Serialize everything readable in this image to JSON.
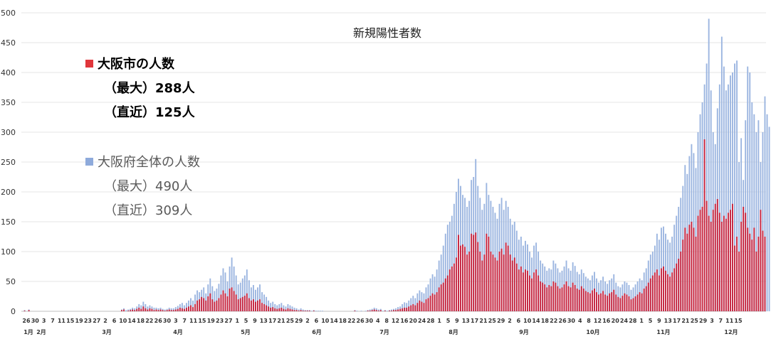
{
  "chart_data": {
    "type": "bar",
    "title": "新規陽性者数",
    "xlabel": "",
    "ylabel": "",
    "ylim": [
      0,
      500
    ],
    "yticks": [
      0,
      50,
      100,
      150,
      200,
      250,
      300,
      350,
      400,
      450,
      500
    ],
    "grid": true,
    "legend_position": "top-left",
    "colors": {
      "city": "#c8223c",
      "pref": "#9bb5e0",
      "grid": "#e6e6e6",
      "axis_text": "#333333"
    },
    "x_day_labels": [
      "26",
      "30",
      "3",
      "7",
      "11",
      "15",
      "19",
      "23",
      "27",
      "2",
      "6",
      "10",
      "14",
      "18",
      "22",
      "26",
      "30",
      "3",
      "7",
      "11",
      "15",
      "19",
      "23",
      "27",
      "1",
      "5",
      "9",
      "13",
      "17",
      "21",
      "25",
      "29",
      "2",
      "6",
      "10",
      "14",
      "18",
      "22",
      "26",
      "30",
      "4",
      "8",
      "12",
      "16",
      "20",
      "24",
      "28",
      "1",
      "5",
      "9",
      "13",
      "17",
      "21",
      "25",
      "29",
      "2",
      "6",
      "10",
      "14",
      "18",
      "22",
      "26",
      "30",
      "4",
      "8",
      "12",
      "16",
      "20",
      "24",
      "28",
      "1",
      "5",
      "9",
      "13",
      "17",
      "21",
      "25",
      "29",
      "3",
      "7",
      "11",
      "15"
    ],
    "x_month_labels": [
      "1月",
      "2月",
      "3月",
      "4月",
      "5月",
      "6月",
      "7月",
      "8月",
      "9月",
      "10月",
      "11月",
      "12月"
    ],
    "series": [
      {
        "name": "大阪市の人数",
        "values": [
          0,
          1,
          0,
          2,
          0,
          0,
          0,
          0,
          0,
          0,
          0,
          0,
          0,
          0,
          0,
          0,
          0,
          0,
          0,
          0,
          0,
          0,
          0,
          0,
          0,
          0,
          0,
          0,
          0,
          0,
          0,
          0,
          0,
          0,
          0,
          0,
          0,
          0,
          0,
          0,
          0,
          0,
          0,
          0,
          0,
          0,
          2,
          3,
          0,
          1,
          2,
          3,
          2,
          4,
          6,
          4,
          8,
          5,
          3,
          5,
          4,
          2,
          3,
          2,
          3,
          2,
          1,
          2,
          3,
          2,
          2,
          3,
          4,
          6,
          5,
          4,
          6,
          8,
          10,
          7,
          12,
          18,
          20,
          24,
          22,
          18,
          25,
          30,
          20,
          16,
          18,
          22,
          28,
          35,
          30,
          25,
          38,
          40,
          34,
          28,
          20,
          22,
          24,
          26,
          30,
          22,
          18,
          20,
          16,
          18,
          20,
          14,
          12,
          10,
          8,
          6,
          7,
          5,
          4,
          5,
          6,
          4,
          3,
          5,
          4,
          3,
          2,
          2,
          1,
          2,
          1,
          1,
          1,
          1,
          0,
          1,
          0,
          0,
          0,
          0,
          0,
          0,
          0,
          0,
          0,
          0,
          0,
          0,
          0,
          0,
          0,
          0,
          0,
          0,
          1,
          0,
          0,
          0,
          0,
          0,
          1,
          1,
          2,
          3,
          2,
          1,
          2,
          0,
          1,
          0,
          1,
          1,
          2,
          2,
          3,
          4,
          5,
          6,
          6,
          8,
          10,
          12,
          10,
          14,
          18,
          16,
          14,
          20,
          22,
          26,
          30,
          28,
          32,
          40,
          45,
          48,
          55,
          60,
          70,
          75,
          80,
          90,
          128,
          110,
          112,
          108,
          95,
          100,
          130,
          128,
          132,
          116,
          100,
          85,
          95,
          130,
          125,
          100,
          95,
          90,
          85,
          100,
          105,
          95,
          115,
          110,
          95,
          85,
          90,
          80,
          70,
          75,
          65,
          70,
          68,
          60,
          55,
          65,
          70,
          60,
          50,
          48,
          45,
          40,
          44,
          42,
          50,
          48,
          42,
          38,
          40,
          45,
          50,
          42,
          40,
          48,
          44,
          38,
          36,
          42,
          38,
          34,
          32,
          30,
          35,
          38,
          32,
          28,
          30,
          34,
          28,
          26,
          30,
          32,
          36,
          28,
          24,
          22,
          26,
          30,
          28,
          25,
          20,
          22,
          25,
          28,
          32,
          30,
          38,
          42,
          48,
          55,
          60,
          65,
          70,
          60,
          72,
          75,
          68,
          62,
          58,
          65,
          72,
          80,
          88,
          100,
          120,
          140,
          130,
          145,
          150,
          140,
          125,
          160,
          170,
          175,
          288,
          185,
          160,
          150,
          170,
          180,
          188,
          165,
          150,
          160,
          155,
          165,
          170,
          180,
          110,
          125,
          100,
          150,
          175,
          165,
          140,
          130,
          120,
          140,
          100,
          125,
          170,
          135,
          125
        ]
      },
      {
        "name": "大阪府全体の人数",
        "values": [
          0,
          2,
          0,
          3,
          0,
          0,
          0,
          0,
          0,
          0,
          0,
          0,
          0,
          0,
          0,
          0,
          0,
          0,
          0,
          0,
          0,
          0,
          0,
          0,
          0,
          0,
          0,
          0,
          0,
          0,
          0,
          0,
          0,
          0,
          0,
          0,
          0,
          0,
          0,
          0,
          0,
          0,
          0,
          0,
          0,
          0,
          3,
          5,
          2,
          3,
          4,
          6,
          5,
          8,
          12,
          10,
          16,
          12,
          8,
          10,
          8,
          6,
          6,
          5,
          6,
          4,
          3,
          4,
          6,
          5,
          5,
          7,
          9,
          12,
          14,
          10,
          14,
          18,
          22,
          18,
          28,
          35,
          32,
          36,
          40,
          30,
          45,
          55,
          42,
          34,
          38,
          46,
          60,
          72,
          65,
          50,
          75,
          90,
          75,
          60,
          45,
          48,
          55,
          60,
          70,
          52,
          40,
          44,
          36,
          40,
          45,
          32,
          28,
          24,
          18,
          14,
          16,
          12,
          10,
          12,
          14,
          10,
          8,
          12,
          10,
          8,
          6,
          5,
          3,
          5,
          3,
          2,
          2,
          2,
          1,
          2,
          1,
          1,
          1,
          1,
          0,
          0,
          0,
          0,
          0,
          0,
          0,
          0,
          0,
          0,
          0,
          0,
          0,
          0,
          2,
          1,
          0,
          1,
          0,
          1,
          2,
          3,
          4,
          6,
          5,
          3,
          4,
          1,
          2,
          1,
          2,
          3,
          4,
          5,
          7,
          8,
          12,
          15,
          14,
          18,
          22,
          26,
          22,
          30,
          35,
          32,
          30,
          40,
          45,
          55,
          62,
          58,
          70,
          85,
          95,
          110,
          130,
          145,
          150,
          160,
          180,
          200,
          222,
          210,
          195,
          190,
          175,
          185,
          220,
          225,
          255,
          210,
          190,
          170,
          180,
          215,
          195,
          185,
          175,
          165,
          155,
          180,
          190,
          170,
          185,
          175,
          155,
          145,
          150,
          135,
          120,
          125,
          110,
          118,
          112,
          100,
          90,
          110,
          115,
          100,
          85,
          80,
          75,
          68,
          72,
          70,
          85,
          80,
          72,
          65,
          68,
          75,
          85,
          72,
          68,
          82,
          76,
          66,
          62,
          70,
          64,
          58,
          55,
          52,
          60,
          66,
          55,
          48,
          52,
          58,
          50,
          46,
          52,
          55,
          62,
          48,
          42,
          40,
          45,
          50,
          48,
          44,
          36,
          40,
          45,
          50,
          55,
          52,
          65,
          72,
          85,
          95,
          100,
          110,
          130,
          120,
          140,
          142,
          130,
          120,
          115,
          125,
          145,
          160,
          175,
          190,
          210,
          245,
          230,
          260,
          280,
          265,
          240,
          300,
          330,
          350,
          380,
          415,
          490,
          370,
          300,
          280,
          340,
          380,
          460,
          410,
          370,
          380,
          395,
          400,
          415,
          420,
          250,
          290,
          220,
          320,
          410,
          400,
          350,
          330,
          300,
          320,
          250,
          300,
          360,
          330,
          309
        ]
      }
    ]
  },
  "legend": {
    "city": {
      "label": "大阪市の人数",
      "max": "（最大）288人",
      "recent": "（直近）125人"
    },
    "pref": {
      "label": "大阪府全体の人数",
      "max": "（最大）490人",
      "recent": "（直近）309人"
    }
  }
}
